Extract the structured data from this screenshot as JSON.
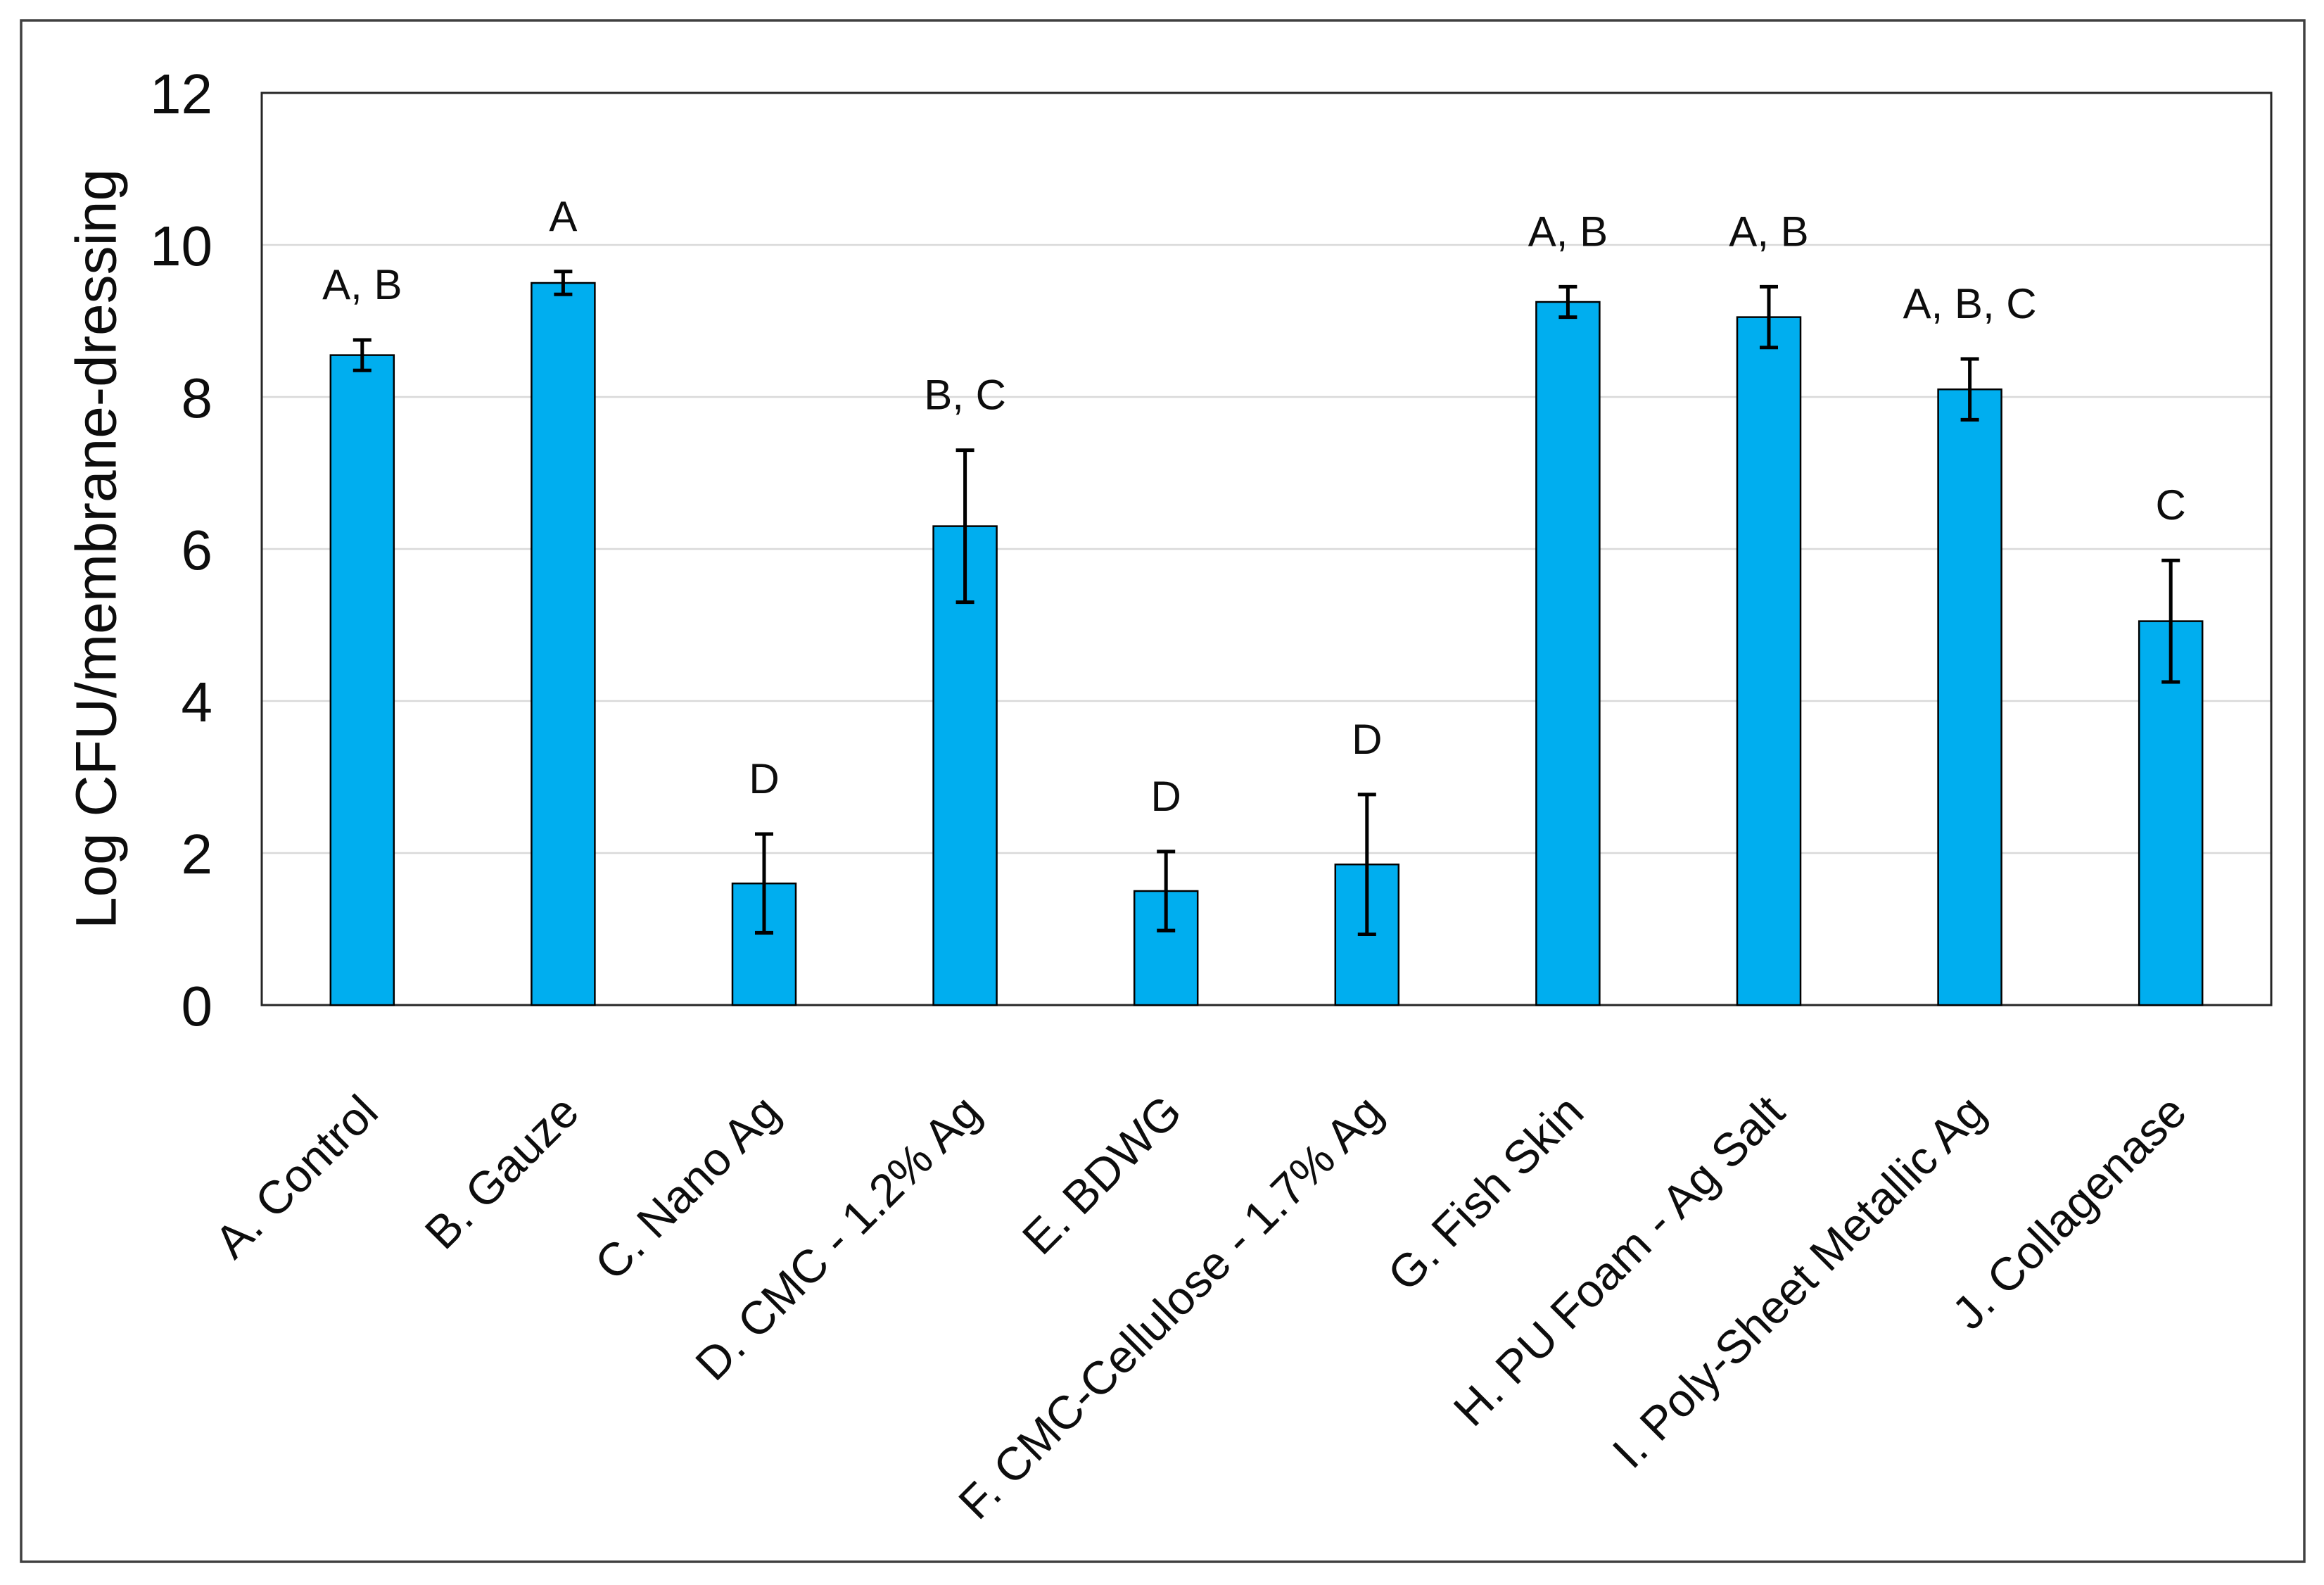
{
  "figure": {
    "background": "#ffffff"
  },
  "chart_data": {
    "type": "bar",
    "title": "",
    "xlabel": "",
    "ylabel": "Log CFU/membrane-dressing",
    "ylim": [
      0,
      12
    ],
    "yticks": [
      0,
      2,
      4,
      6,
      8,
      10,
      12
    ],
    "grid": true,
    "legend": "none",
    "categories": [
      "A. Control",
      "B. Gauze",
      "C. Nano Ag",
      "D. CMC - 1.2% Ag",
      "E. BDWG",
      "F. CMC-Cellulose - 1.7% Ag",
      "G. Fish Skin",
      "H. PU Foam - Ag Salt",
      "I. Poly-Sheet Metallic Ag",
      "J. Collagenase"
    ],
    "values": [
      8.55,
      9.5,
      1.6,
      6.3,
      1.5,
      1.85,
      9.25,
      9.05,
      8.1,
      5.05
    ],
    "error_bars": [
      0.2,
      0.15,
      0.65,
      1.0,
      0.52,
      0.92,
      0.2,
      0.4,
      0.4,
      0.8
    ],
    "significance_letters": [
      "A, B",
      "A",
      "D",
      "B, C",
      "D",
      "D",
      "A, B",
      "A, B",
      "A, B, C",
      "C"
    ],
    "colors": {
      "bar_fill": "#00AEEF",
      "bar_stroke": "#000000",
      "error_bar": "#000000",
      "gridline": "#D9D9D9",
      "axis_line": "#262626",
      "text": "#0D0D0D",
      "figure_border": "#404040",
      "background": "#FFFFFF"
    }
  }
}
